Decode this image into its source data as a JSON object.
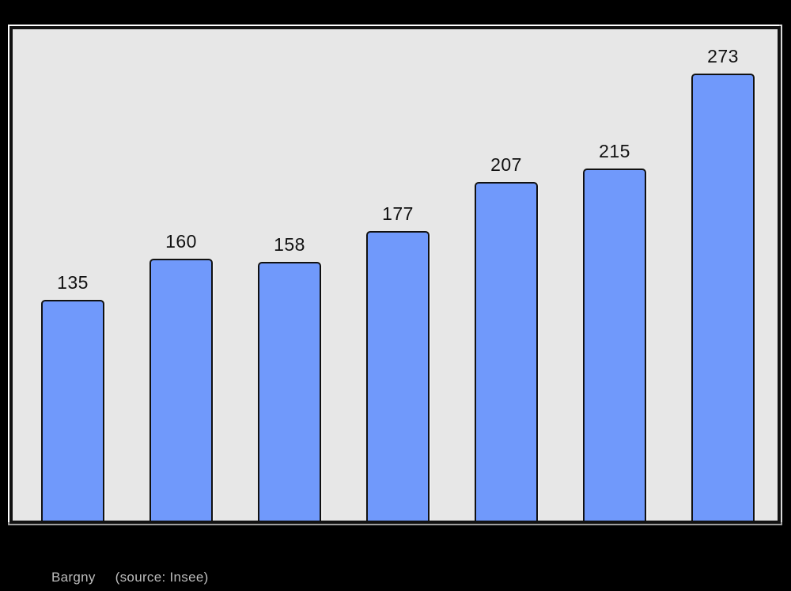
{
  "page": {
    "background": "#000000"
  },
  "chart_frame": {
    "background": "#e7e7e7",
    "border_color": "#111111"
  },
  "chart_data": {
    "type": "bar",
    "values": [
      135,
      160,
      158,
      177,
      207,
      215,
      273
    ],
    "data_labels": [
      "135",
      "160",
      "158",
      "177",
      "207",
      "215",
      "273"
    ],
    "ylim": [
      0,
      300
    ],
    "grid": false,
    "legend": false,
    "axes_labeled": false,
    "bar_color": "#7099fb",
    "bar_border_color": "#111111",
    "value_label_color": "#111111"
  },
  "caption": {
    "place": "Bargny",
    "source": "(source: Insee)",
    "color": "#bdbdbd"
  }
}
